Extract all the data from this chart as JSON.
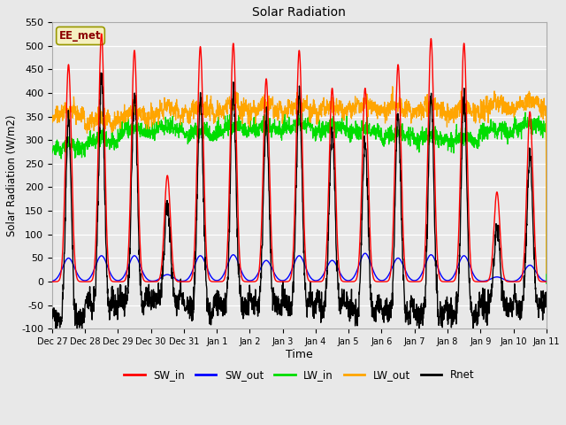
{
  "title": "Solar Radiation",
  "xlabel": "Time",
  "ylabel": "Solar Radiation (W/m2)",
  "ylim": [
    -100,
    550
  ],
  "yticks": [
    -100,
    -50,
    0,
    50,
    100,
    150,
    200,
    250,
    300,
    350,
    400,
    450,
    500,
    550
  ],
  "x_labels": [
    "Dec 27",
    "Dec 28",
    "Dec 29",
    "Dec 30",
    "Dec 31",
    "Jan 1",
    "Jan 2",
    "Jan 3",
    "Jan 4",
    "Jan 5",
    "Jan 6",
    "Jan 7",
    "Jan 8",
    "Jan 9",
    "Jan 10",
    "Jan 11"
  ],
  "n_days": 15,
  "annotation": "EE_met",
  "colors": {
    "SW_in": "#ff0000",
    "SW_out": "#0000ff",
    "LW_in": "#00dd00",
    "LW_out": "#ffa500",
    "Rnet": "#000000"
  },
  "fig_bg": "#e8e8e8",
  "plot_bg": "#e8e8e8",
  "grid_color": "#ffffff"
}
